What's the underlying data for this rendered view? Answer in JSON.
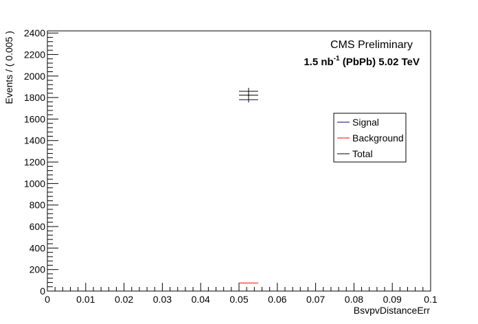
{
  "chart_data": {
    "type": "scatter",
    "xlabel": "BsvpvDistanceErr",
    "ylabel": "Events / ( 0.005 )",
    "xlim": [
      0,
      0.1
    ],
    "ylim": [
      0,
      2420
    ],
    "x_ticks": [
      "0",
      "0.01",
      "0.02",
      "0.03",
      "0.04",
      "0.05",
      "0.06",
      "0.07",
      "0.08",
      "0.09",
      "0.1"
    ],
    "y_ticks": [
      "0",
      "200",
      "400",
      "600",
      "800",
      "1000",
      "1200",
      "1400",
      "1600",
      "1800",
      "2000",
      "2200",
      "2400"
    ],
    "x_tick_values": [
      0,
      0.01,
      0.02,
      0.03,
      0.04,
      0.05,
      0.06,
      0.07,
      0.08,
      0.09,
      0.1
    ],
    "y_tick_values": [
      0,
      200,
      400,
      600,
      800,
      1000,
      1200,
      1400,
      1600,
      1800,
      2000,
      2200,
      2400
    ],
    "bin_width": 0.005,
    "data_points": [
      {
        "x": 0.0525,
        "y": 1822,
        "y_err": 68
      }
    ],
    "series": [
      {
        "name": "Signal",
        "color": "#000080",
        "values": [
          {
            "x_low": 0.05,
            "x_high": 0.055,
            "y": 1780
          }
        ]
      },
      {
        "name": "Background",
        "color": "#ff0000",
        "values": [
          {
            "x_low": 0.05,
            "x_high": 0.055,
            "y": 75
          }
        ]
      },
      {
        "name": "Total",
        "color": "#000000",
        "values": [
          {
            "x_low": 0.05,
            "x_high": 0.055,
            "y": 1858
          }
        ]
      }
    ],
    "legend_position": "right",
    "grid": false
  },
  "annotations": {
    "cms_label": "CMS Preliminary",
    "lumi_value": "1.5 nb",
    "lumi_exponent": "-1",
    "lumi_rest": " (PbPb) 5.02 TeV"
  }
}
